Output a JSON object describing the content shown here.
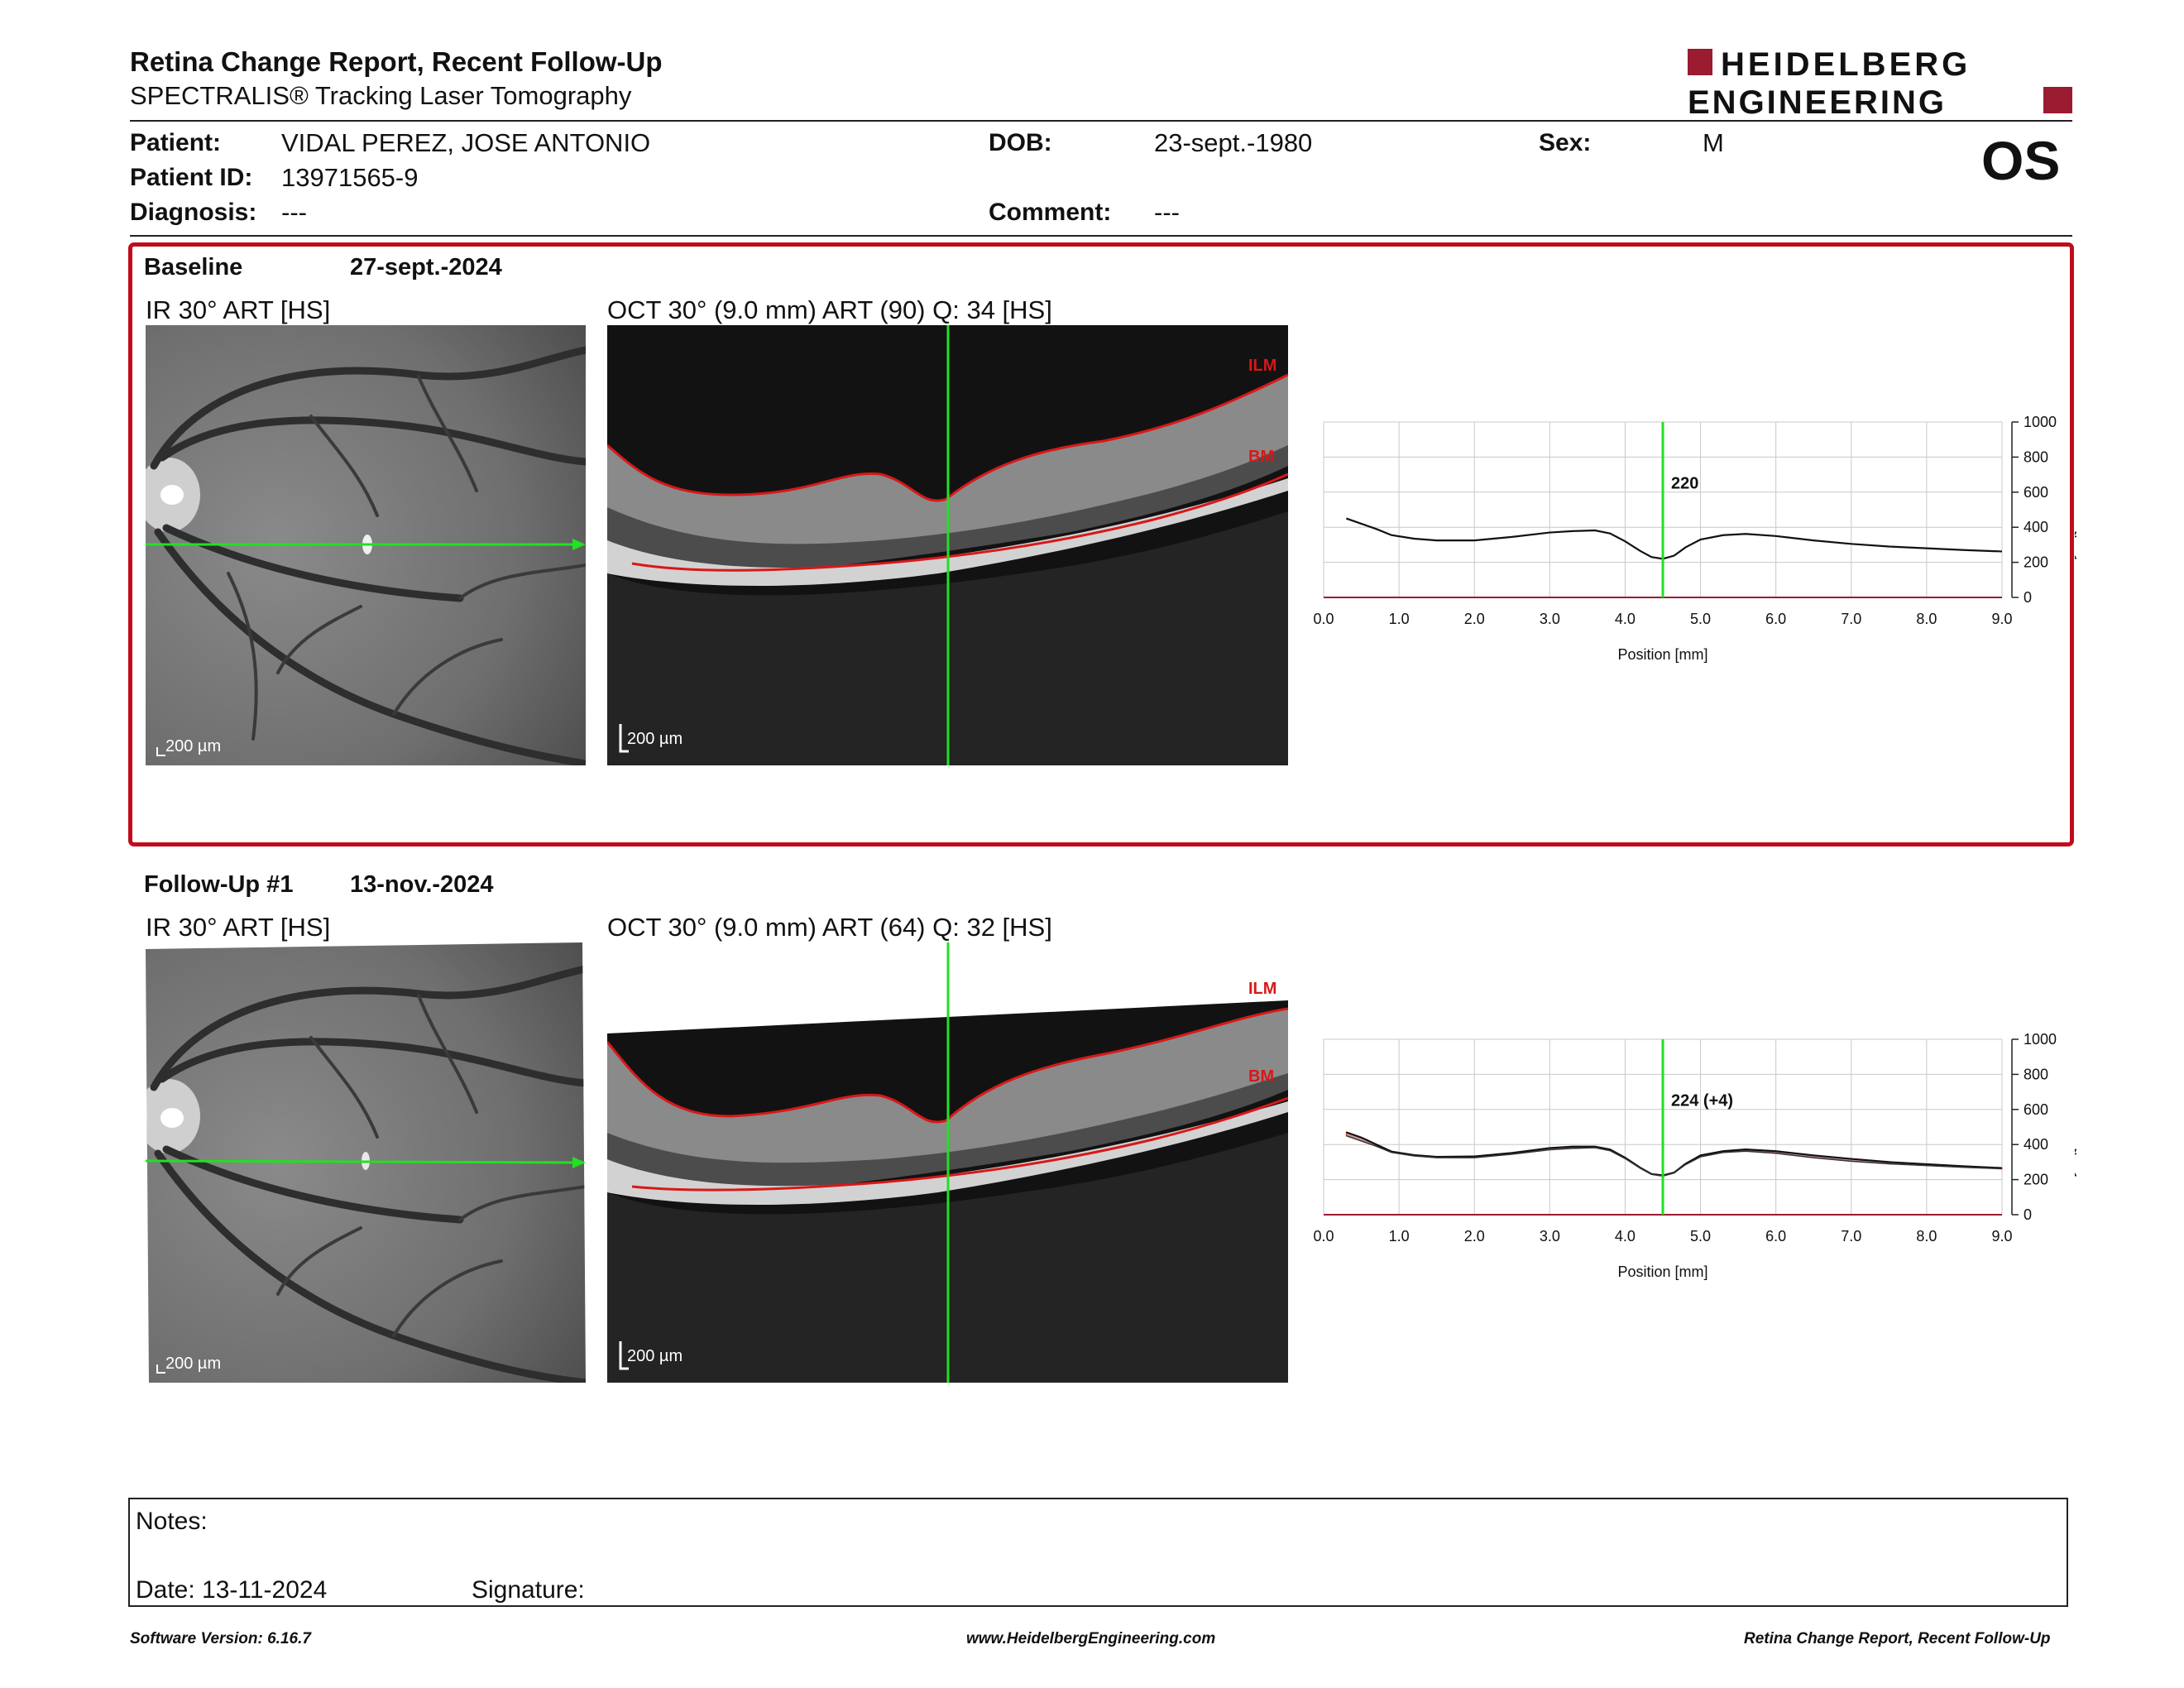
{
  "header": {
    "title": "Retina Change Report, Recent Follow-Up",
    "subtitle": "SPECTRALIS® Tracking Laser Tomography",
    "logo_line1": "HEIDELBERG",
    "logo_line2": "ENGINEERING",
    "eye": "OS"
  },
  "patient": {
    "patient_label": "Patient:",
    "patient_value": "VIDAL PEREZ, JOSE ANTONIO",
    "dob_label": "DOB:",
    "dob_value": "23-sept.-1980",
    "sex_label": "Sex:",
    "sex_value": "M",
    "id_label": "Patient ID:",
    "id_value": "13971565-9",
    "diagnosis_label": "Diagnosis:",
    "diagnosis_value": "---",
    "comment_label": "Comment:",
    "comment_value": "---"
  },
  "baseline": {
    "label": "Baseline",
    "date": "27-sept.-2024",
    "ir_title": "IR 30° ART [HS]",
    "oct_title": "OCT 30° (9.0 mm) ART (90) Q: 34 [HS]",
    "scale_label": "200 µm",
    "ilm_label": "ILM",
    "bm_label": "BM",
    "marker_value": "220"
  },
  "followup": {
    "label": "Follow-Up #1",
    "date": "13-nov.-2024",
    "ir_title": "IR 30° ART [HS]",
    "oct_title": "OCT 30° (9.0 mm) ART (64) Q: 32 [HS]",
    "scale_label": "200 µm",
    "ilm_label": "ILM",
    "bm_label": "BM",
    "marker_value": "224 (+4)"
  },
  "chart_data": [
    {
      "type": "line",
      "xlabel": "Position [mm]",
      "ylabel": "Thickness [µm]",
      "xlim": [
        0,
        9.0
      ],
      "ylim": [
        0,
        1000
      ],
      "x_ticks": [
        "0.0",
        "1.0",
        "2.0",
        "3.0",
        "4.0",
        "5.0",
        "6.0",
        "7.0",
        "8.0",
        "9.0"
      ],
      "y_ticks": [
        "0",
        "200",
        "400",
        "600",
        "800",
        "1000"
      ],
      "marker_x": 4.5,
      "marker_label": "220",
      "series": [
        {
          "x": [
            0.3,
            0.5,
            0.7,
            0.9,
            1.2,
            1.5,
            2.0,
            2.5,
            3.0,
            3.3,
            3.6,
            3.8,
            4.0,
            4.2,
            4.35,
            4.5,
            4.65,
            4.8,
            5.0,
            5.3,
            5.6,
            6.0,
            6.5,
            7.0,
            7.5,
            8.0,
            8.5,
            9.0
          ],
          "y": [
            450,
            420,
            390,
            355,
            335,
            325,
            325,
            345,
            370,
            378,
            382,
            365,
            320,
            265,
            230,
            220,
            238,
            285,
            330,
            355,
            362,
            350,
            325,
            305,
            290,
            280,
            270,
            262
          ]
        }
      ]
    },
    {
      "type": "line",
      "xlabel": "Position [mm]",
      "ylabel": "Thickness [µm]",
      "xlim": [
        0,
        9.0
      ],
      "ylim": [
        0,
        1000
      ],
      "x_ticks": [
        "0.0",
        "1.0",
        "2.0",
        "3.0",
        "4.0",
        "5.0",
        "6.0",
        "7.0",
        "8.0",
        "9.0"
      ],
      "y_ticks": [
        "0",
        "200",
        "400",
        "600",
        "800",
        "1000"
      ],
      "marker_x": 4.5,
      "marker_label": "224 (+4)",
      "series": [
        {
          "x": [
            0.3,
            0.5,
            0.7,
            0.9,
            1.2,
            1.5,
            2.0,
            2.5,
            3.0,
            3.3,
            3.6,
            3.8,
            4.0,
            4.2,
            4.35,
            4.5,
            4.65,
            4.8,
            5.0,
            5.3,
            5.6,
            6.0,
            6.5,
            7.0,
            7.5,
            8.0,
            8.5,
            9.0
          ],
          "y": [
            470,
            440,
            400,
            360,
            340,
            330,
            332,
            352,
            380,
            388,
            388,
            372,
            325,
            268,
            232,
            224,
            240,
            290,
            338,
            362,
            372,
            362,
            338,
            318,
            300,
            288,
            276,
            266
          ]
        },
        {
          "x": [
            0.3,
            0.5,
            0.7,
            0.9,
            1.2,
            1.5,
            2.0,
            2.5,
            3.0,
            3.3,
            3.6,
            3.8,
            4.0,
            4.2,
            4.35,
            4.5,
            4.65,
            4.8,
            5.0,
            5.3,
            5.6,
            6.0,
            6.5,
            7.0,
            7.5,
            8.0,
            8.5,
            9.0
          ],
          "y": [
            450,
            420,
            390,
            355,
            335,
            325,
            325,
            345,
            370,
            378,
            382,
            365,
            320,
            265,
            230,
            220,
            238,
            285,
            330,
            355,
            362,
            350,
            325,
            305,
            290,
            280,
            270,
            262
          ]
        }
      ]
    }
  ],
  "notes": {
    "notes_label": "Notes:",
    "date_label": "Date: 13-11-2024",
    "signature_label": "Signature:"
  },
  "footer": {
    "left": "Software Version: 6.16.7",
    "center": "www.HeidelbergEngineering.com",
    "right": "Retina Change Report, Recent Follow-Up"
  },
  "colors": {
    "brand_red": "#9b1b30",
    "frame_red": "#c00c1c",
    "scan_green": "#22e022",
    "layer_red": "#d81818"
  }
}
